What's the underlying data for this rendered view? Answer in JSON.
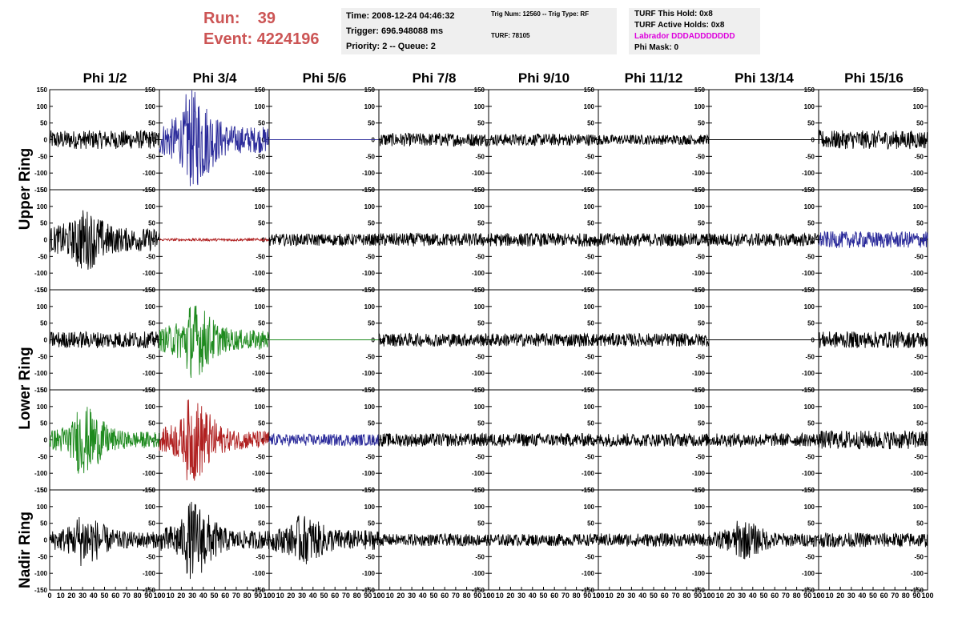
{
  "header": {
    "run_label": "Run:",
    "run_value": "39",
    "event_label": "Event:",
    "event_value": "4224196"
  },
  "info_box_1": {
    "time": "Time: 2008-12-24 04:46:32",
    "trigger": "Trigger: 696.948088 ms",
    "priority": "Priority: 2 -- Queue: 2"
  },
  "info_box_2": {
    "trig": "Trig Num: 12560 -- Trig Type: RF",
    "turf": "TURF: 78105"
  },
  "info_box_3": {
    "this_hold": "TURF This Hold: 0x8",
    "active_holds": "TURF Active Holds: 0x8",
    "labrador": "Labrador DDDADDDDDDD",
    "phi_mask": "Phi Mask: 0"
  },
  "colors": {
    "run_text": "#cc5555",
    "labrador_text": "#dd00dd",
    "black_trace": "#000000",
    "blue_trace": "#2a2a9a",
    "red_trace": "#b02020",
    "green_trace": "#1e8a1e",
    "info_bg": "#efefef"
  },
  "chart_data": {
    "type": "line",
    "columns": [
      "Phi 1/2",
      "Phi 3/4",
      "Phi 5/6",
      "Phi 7/8",
      "Phi 9/10",
      "Phi 11/12",
      "Phi 13/14",
      "Phi 15/16"
    ],
    "ring_labels": [
      "Upper Ring",
      "Lower Ring",
      "Nadir Ring"
    ],
    "xlim": [
      0,
      100
    ],
    "ylim": [
      -150,
      150
    ],
    "x_ticks": [
      0,
      10,
      20,
      30,
      40,
      50,
      60,
      70,
      80,
      90,
      100
    ],
    "y_ticks": [
      150,
      100,
      50,
      0,
      -50,
      -100,
      -150
    ],
    "rows": [
      [
        {
          "color": "black",
          "amp": 28,
          "burst": 0,
          "flat": false
        },
        {
          "color": "blue",
          "amp": 40,
          "burst": 110,
          "flat": false
        },
        {
          "color": "blue",
          "amp": 0,
          "burst": 0,
          "flat": true
        },
        {
          "color": "black",
          "amp": 20,
          "burst": 0,
          "flat": false
        },
        {
          "color": "black",
          "amp": 18,
          "burst": 0,
          "flat": false
        },
        {
          "color": "black",
          "amp": 15,
          "burst": 0,
          "flat": false
        },
        {
          "color": "black",
          "amp": 0,
          "burst": 0,
          "flat": true
        },
        {
          "color": "black",
          "amp": 28,
          "burst": 0,
          "flat": false
        }
      ],
      [
        {
          "color": "black",
          "amp": 35,
          "burst": 60,
          "flat": false
        },
        {
          "color": "red",
          "amp": 4,
          "burst": 0,
          "flat": false
        },
        {
          "color": "black",
          "amp": 18,
          "burst": 0,
          "flat": false
        },
        {
          "color": "black",
          "amp": 20,
          "burst": 0,
          "flat": false
        },
        {
          "color": "black",
          "amp": 20,
          "burst": 0,
          "flat": false
        },
        {
          "color": "black",
          "amp": 20,
          "burst": 0,
          "flat": false
        },
        {
          "color": "black",
          "amp": 20,
          "burst": 0,
          "flat": false
        },
        {
          "color": "blue",
          "amp": 25,
          "burst": 0,
          "flat": false
        }
      ],
      [
        {
          "color": "black",
          "amp": 25,
          "burst": 0,
          "flat": false
        },
        {
          "color": "green",
          "amp": 30,
          "burst": 85,
          "flat": false
        },
        {
          "color": "green",
          "amp": 0,
          "burst": 0,
          "flat": true
        },
        {
          "color": "black",
          "amp": 20,
          "burst": 0,
          "flat": false
        },
        {
          "color": "black",
          "amp": 20,
          "burst": 0,
          "flat": false
        },
        {
          "color": "black",
          "amp": 20,
          "burst": 0,
          "flat": false
        },
        {
          "color": "black",
          "amp": 0,
          "burst": 0,
          "flat": true
        },
        {
          "color": "black",
          "amp": 25,
          "burst": 0,
          "flat": false
        }
      ],
      [
        {
          "color": "green",
          "amp": 25,
          "burst": 80,
          "flat": false
        },
        {
          "color": "red",
          "amp": 28,
          "burst": 100,
          "flat": false
        },
        {
          "color": "blue",
          "amp": 18,
          "burst": 0,
          "flat": false
        },
        {
          "color": "black",
          "amp": 20,
          "burst": 0,
          "flat": false
        },
        {
          "color": "black",
          "amp": 20,
          "burst": 0,
          "flat": false
        },
        {
          "color": "black",
          "amp": 20,
          "burst": 0,
          "flat": false
        },
        {
          "color": "black",
          "amp": 20,
          "burst": 0,
          "flat": false
        },
        {
          "color": "black",
          "amp": 28,
          "burst": 0,
          "flat": false
        }
      ],
      [
        {
          "color": "black",
          "amp": 25,
          "burst": 55,
          "flat": false
        },
        {
          "color": "black",
          "amp": 28,
          "burst": 90,
          "flat": false
        },
        {
          "color": "black",
          "amp": 30,
          "burst": 45,
          "flat": false
        },
        {
          "color": "black",
          "amp": 18,
          "burst": 0,
          "flat": false
        },
        {
          "color": "black",
          "amp": 18,
          "burst": 0,
          "flat": false
        },
        {
          "color": "black",
          "amp": 20,
          "burst": 0,
          "flat": false
        },
        {
          "color": "black",
          "amp": 20,
          "burst": 40,
          "flat": false
        },
        {
          "color": "black",
          "amp": 22,
          "burst": 0,
          "flat": false
        }
      ]
    ]
  }
}
